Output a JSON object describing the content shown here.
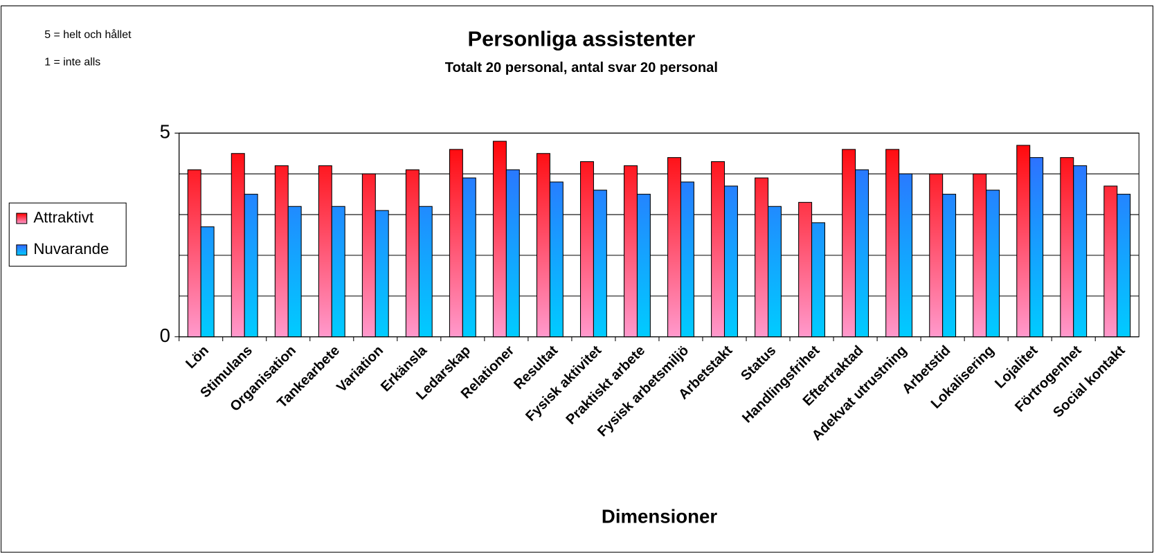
{
  "chart_data": {
    "type": "bar",
    "title": "Personliga assistenter",
    "subtitle": "Totalt 20 personal, antal svar 20 personal",
    "notes": [
      "5 = helt och hållet",
      "1 = inte alls"
    ],
    "x_label": "Dimensioner",
    "categories": [
      "Lön",
      "Stimulans",
      "Organisation",
      "Tankearbete",
      "Variation",
      "Erkänsla",
      "Ledarskap",
      "Relationer",
      "Resultat",
      "Fysisk aktivitet",
      "Praktiskt arbete",
      "Fysisk arbetsmiljö",
      "Arbetstakt",
      "Status",
      "Handlingsfrihet",
      "Eftertraktad",
      "Adekvat utrustning",
      "Arbetstid",
      "Lokalisering",
      "Lojalitet",
      "Förtrogenhet",
      "Social kontakt"
    ],
    "series": [
      {
        "name": "Attraktivt",
        "color": [
          "#ff0000",
          "#ff99cc"
        ],
        "values": [
          4.1,
          4.5,
          4.2,
          4.2,
          4.0,
          4.1,
          4.6,
          4.8,
          4.5,
          4.3,
          4.2,
          4.4,
          4.3,
          3.9,
          3.3,
          4.6,
          4.6,
          4.0,
          4.0,
          4.7,
          4.4,
          3.7
        ]
      },
      {
        "name": "Nuvarande",
        "color": [
          "#3366ff",
          "#00ccff"
        ],
        "values": [
          2.7,
          3.5,
          3.2,
          3.2,
          3.1,
          3.2,
          3.9,
          4.1,
          3.8,
          3.6,
          3.5,
          3.8,
          3.7,
          3.2,
          2.8,
          4.1,
          4.0,
          3.5,
          3.6,
          4.4,
          4.2,
          3.5
        ]
      }
    ],
    "ylim": [
      0,
      5
    ],
    "yticks": [
      0,
      5
    ],
    "minor_gridlines": [
      1,
      2,
      3,
      4
    ],
    "legend": "left"
  }
}
